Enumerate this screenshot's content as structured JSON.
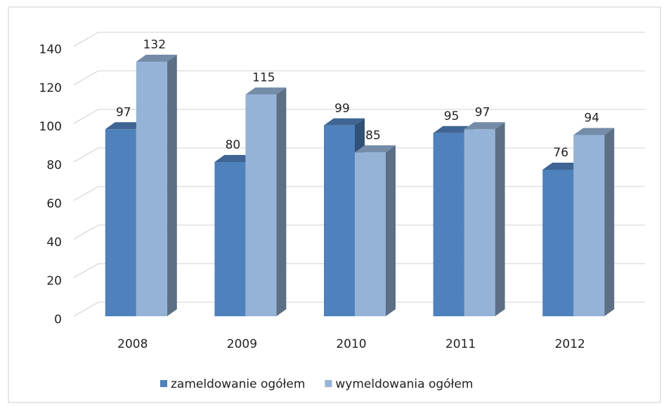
{
  "chart_data": {
    "type": "bar3d",
    "categories": [
      "2008",
      "2009",
      "2010",
      "2011",
      "2012"
    ],
    "series": [
      {
        "name": "zameldowanie ogółem",
        "color": "#4f81bd",
        "values": [
          97,
          80,
          99,
          95,
          76
        ]
      },
      {
        "name": "wymeldowania ogółem",
        "color": "#95b3d7",
        "values": [
          132,
          115,
          85,
          97,
          94
        ]
      }
    ],
    "ylim": [
      0,
      140
    ],
    "yticks": [
      0,
      20,
      40,
      60,
      80,
      100,
      120,
      140
    ],
    "grid": true,
    "legend": "bottom"
  }
}
